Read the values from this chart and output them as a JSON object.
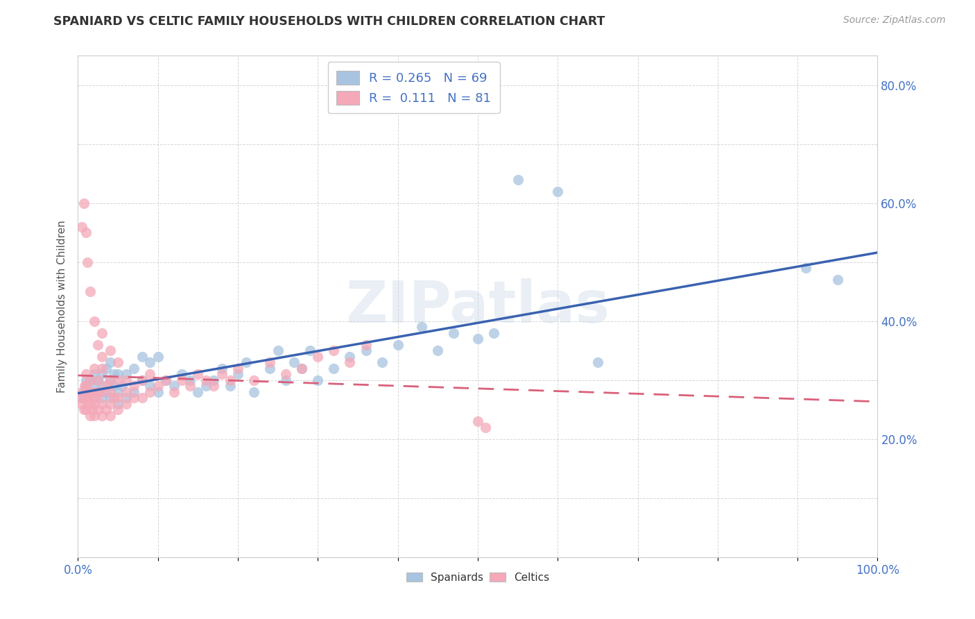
{
  "title": "SPANIARD VS CELTIC FAMILY HOUSEHOLDS WITH CHILDREN CORRELATION CHART",
  "source": "Source: ZipAtlas.com",
  "ylabel": "Family Households with Children",
  "watermark": "ZIPatlas",
  "legend_r_spaniards": "0.265",
  "legend_n_spaniards": "69",
  "legend_r_celtics": "0.111",
  "legend_n_celtics": "81",
  "xlim": [
    0.0,
    1.0
  ],
  "ylim": [
    0.0,
    0.85
  ],
  "color_spaniards": "#a8c4e0",
  "color_celtics": "#f4a8b8",
  "line_color_spaniards": "#3a62b0",
  "line_color_celtics": "#d9607a",
  "background_color": "#ffffff",
  "spaniards_x": [
    0.005,
    0.008,
    0.01,
    0.01,
    0.015,
    0.015,
    0.02,
    0.02,
    0.02,
    0.025,
    0.025,
    0.03,
    0.03,
    0.03,
    0.035,
    0.035,
    0.04,
    0.04,
    0.04,
    0.045,
    0.045,
    0.05,
    0.05,
    0.05,
    0.055,
    0.06,
    0.06,
    0.07,
    0.07,
    0.08,
    0.08,
    0.09,
    0.09,
    0.1,
    0.1,
    0.11,
    0.12,
    0.13,
    0.14,
    0.15,
    0.16,
    0.17,
    0.18,
    0.19,
    0.2,
    0.21,
    0.22,
    0.24,
    0.25,
    0.26,
    0.27,
    0.28,
    0.29,
    0.3,
    0.32,
    0.34,
    0.36,
    0.38,
    0.4,
    0.43,
    0.45,
    0.47,
    0.5,
    0.52,
    0.55,
    0.6,
    0.65,
    0.91,
    0.95
  ],
  "spaniards_y": [
    0.27,
    0.28,
    0.29,
    0.3,
    0.28,
    0.3,
    0.27,
    0.29,
    0.31,
    0.28,
    0.3,
    0.27,
    0.29,
    0.31,
    0.28,
    0.32,
    0.27,
    0.3,
    0.33,
    0.29,
    0.31,
    0.26,
    0.28,
    0.31,
    0.29,
    0.27,
    0.31,
    0.28,
    0.32,
    0.3,
    0.34,
    0.29,
    0.33,
    0.28,
    0.34,
    0.3,
    0.29,
    0.31,
    0.3,
    0.28,
    0.29,
    0.3,
    0.32,
    0.29,
    0.31,
    0.33,
    0.28,
    0.32,
    0.35,
    0.3,
    0.33,
    0.32,
    0.35,
    0.3,
    0.32,
    0.34,
    0.35,
    0.33,
    0.36,
    0.39,
    0.35,
    0.38,
    0.37,
    0.38,
    0.64,
    0.62,
    0.33,
    0.49,
    0.47
  ],
  "celtics_x": [
    0.003,
    0.005,
    0.005,
    0.007,
    0.008,
    0.008,
    0.01,
    0.01,
    0.01,
    0.01,
    0.012,
    0.012,
    0.015,
    0.015,
    0.015,
    0.015,
    0.018,
    0.018,
    0.02,
    0.02,
    0.02,
    0.02,
    0.022,
    0.025,
    0.025,
    0.025,
    0.03,
    0.03,
    0.03,
    0.03,
    0.035,
    0.035,
    0.04,
    0.04,
    0.04,
    0.04,
    0.045,
    0.05,
    0.05,
    0.05,
    0.06,
    0.06,
    0.06,
    0.07,
    0.07,
    0.08,
    0.08,
    0.09,
    0.09,
    0.1,
    0.11,
    0.12,
    0.13,
    0.14,
    0.15,
    0.16,
    0.17,
    0.18,
    0.19,
    0.2,
    0.22,
    0.24,
    0.26,
    0.28,
    0.3,
    0.32,
    0.34,
    0.36,
    0.005,
    0.007,
    0.01,
    0.012,
    0.015,
    0.02,
    0.025,
    0.03,
    0.03,
    0.04,
    0.05,
    0.5,
    0.51
  ],
  "celtics_y": [
    0.27,
    0.26,
    0.28,
    0.25,
    0.27,
    0.29,
    0.25,
    0.27,
    0.29,
    0.31,
    0.26,
    0.28,
    0.24,
    0.26,
    0.28,
    0.3,
    0.25,
    0.27,
    0.24,
    0.26,
    0.28,
    0.32,
    0.27,
    0.25,
    0.28,
    0.3,
    0.24,
    0.26,
    0.28,
    0.32,
    0.25,
    0.29,
    0.24,
    0.26,
    0.28,
    0.3,
    0.27,
    0.25,
    0.27,
    0.3,
    0.26,
    0.28,
    0.3,
    0.27,
    0.29,
    0.27,
    0.3,
    0.28,
    0.31,
    0.29,
    0.3,
    0.28,
    0.3,
    0.29,
    0.31,
    0.3,
    0.29,
    0.31,
    0.3,
    0.32,
    0.3,
    0.33,
    0.31,
    0.32,
    0.34,
    0.35,
    0.33,
    0.36,
    0.56,
    0.6,
    0.55,
    0.5,
    0.45,
    0.4,
    0.36,
    0.34,
    0.38,
    0.35,
    0.33,
    0.23,
    0.22
  ]
}
